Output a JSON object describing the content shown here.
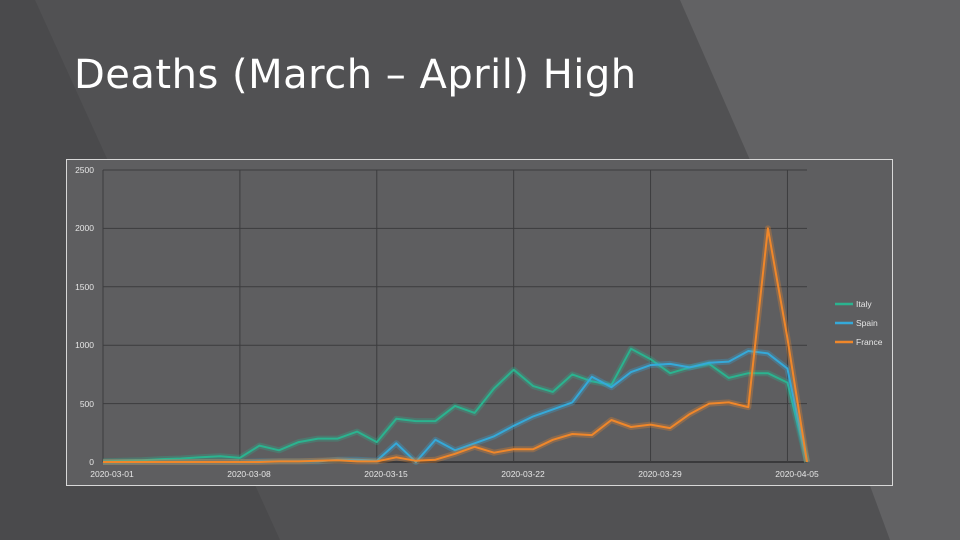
{
  "slide": {
    "title": "Deaths (March – April) High"
  },
  "colors": {
    "background": "#4a4a4c",
    "plot_background": "#5e5e60",
    "italy": "#2bb38f",
    "spain": "#35a9d9",
    "france": "#f0872a"
  },
  "chart_data": {
    "type": "line",
    "title": "",
    "xlabel": "",
    "ylabel": "",
    "ylim": [
      0,
      2500
    ],
    "yticks": [
      0,
      500,
      1000,
      1500,
      2000,
      2500
    ],
    "x": [
      "2020-03-01",
      "2020-03-02",
      "2020-03-03",
      "2020-03-04",
      "2020-03-05",
      "2020-03-06",
      "2020-03-07",
      "2020-03-08",
      "2020-03-09",
      "2020-03-10",
      "2020-03-11",
      "2020-03-12",
      "2020-03-13",
      "2020-03-14",
      "2020-03-15",
      "2020-03-16",
      "2020-03-17",
      "2020-03-18",
      "2020-03-19",
      "2020-03-20",
      "2020-03-21",
      "2020-03-22",
      "2020-03-23",
      "2020-03-24",
      "2020-03-25",
      "2020-03-26",
      "2020-03-27",
      "2020-03-28",
      "2020-03-29",
      "2020-03-30",
      "2020-03-31",
      "2020-04-01",
      "2020-04-02",
      "2020-04-03",
      "2020-04-04",
      "2020-04-05",
      "2020-04-06"
    ],
    "xticks": [
      "2020-03-01",
      "2020-03-08",
      "2020-03-15",
      "2020-03-22",
      "2020-03-29",
      "2020-04-05"
    ],
    "legend_position": "right",
    "grid": true,
    "series": [
      {
        "name": "Italy",
        "color": "#2bb38f",
        "values": [
          5,
          10,
          15,
          25,
          30,
          40,
          50,
          35,
          140,
          100,
          170,
          200,
          200,
          260,
          170,
          370,
          350,
          350,
          480,
          420,
          630,
          790,
          650,
          600,
          750,
          690,
          660,
          970,
          880,
          760,
          810,
          840,
          720,
          760,
          760,
          680,
          0
        ]
      },
      {
        "name": "Spain",
        "color": "#35a9d9",
        "values": [
          0,
          0,
          0,
          0,
          0,
          0,
          0,
          0,
          5,
          5,
          5,
          5,
          20,
          20,
          10,
          160,
          0,
          190,
          100,
          160,
          220,
          310,
          390,
          450,
          510,
          730,
          640,
          770,
          830,
          840,
          810,
          850,
          860,
          950,
          930,
          800,
          0
        ]
      },
      {
        "name": "France",
        "color": "#f0872a",
        "values": [
          0,
          0,
          0,
          0,
          0,
          0,
          0,
          0,
          0,
          5,
          5,
          10,
          15,
          5,
          5,
          40,
          10,
          20,
          70,
          130,
          80,
          110,
          110,
          190,
          240,
          230,
          360,
          300,
          320,
          290,
          410,
          500,
          510,
          470,
          2000,
          1060,
          0
        ]
      }
    ]
  },
  "chart_labels": {
    "y": [
      "2500",
      "2000",
      "1500",
      "1000",
      "500",
      "0"
    ],
    "x": [
      "2020-03-01",
      "2020-03-08",
      "2020-03-15",
      "2020-03-22",
      "2020-03-29",
      "2020-04-05"
    ],
    "legend": [
      "Italy",
      "Spain",
      "France"
    ]
  }
}
